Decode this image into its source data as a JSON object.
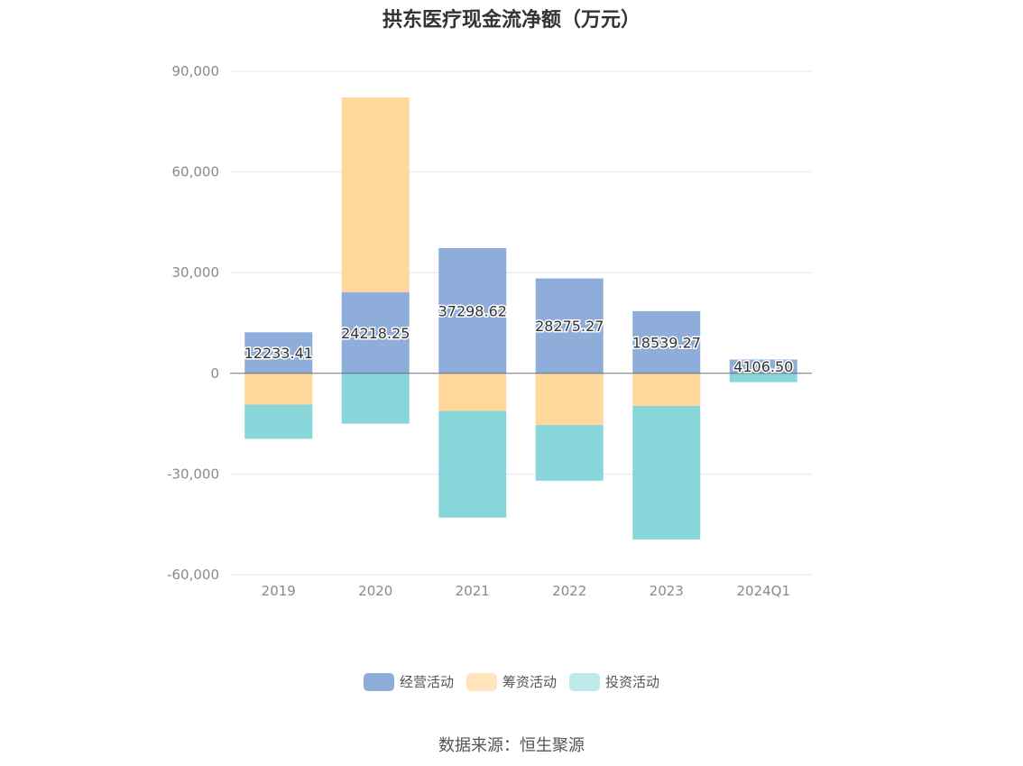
{
  "title": "拱东医疗现金流净额（万元）",
  "source": "数据来源：恒生聚源",
  "chart_data": {
    "type": "bar",
    "stacked": true,
    "categories": [
      "2019",
      "2020",
      "2021",
      "2022",
      "2023",
      "2024Q1"
    ],
    "y_ticks": [
      90000,
      60000,
      30000,
      0,
      -30000,
      -60000
    ],
    "y_tick_labels": [
      "90,000",
      "60,000",
      "30,000",
      "0",
      "-30,000",
      "-60,000"
    ],
    "ylim": [
      -60000,
      90000
    ],
    "grid": true,
    "legend_position": "bottom",
    "series": [
      {
        "name": "经营活动",
        "color": "#8eaddb",
        "values": [
          12233.41,
          24218.25,
          37298.62,
          28275.27,
          18539.27,
          4106.5
        ],
        "labels": [
          "12233.41",
          "24218.25",
          "37298.62",
          "28275.27",
          "18539.27",
          "4106.50"
        ]
      },
      {
        "name": "筹资活动",
        "color": "#ffd89b",
        "values": [
          -9300,
          58000,
          -11200,
          -15400,
          -9700,
          0
        ]
      },
      {
        "name": "投资活动",
        "color": "#88d6d9",
        "values": [
          -10200,
          -15000,
          -31800,
          -16600,
          -39800,
          -2600
        ]
      }
    ]
  }
}
